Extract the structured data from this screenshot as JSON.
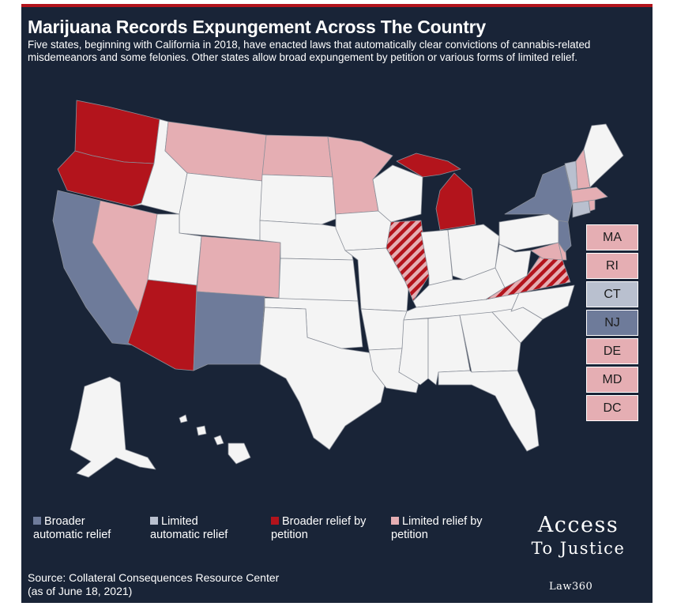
{
  "title": "Marijuana Records Expungement Across The Country",
  "subtitle": "Five states, beginning with California in 2018, have enacted laws that automatically clear convictions of cannabis-related misdemeanors and some felonies. Other states allow broad expungement by petition or various forms of limited relief.",
  "colors": {
    "background": "#192437",
    "accent_bar": "#b3141c",
    "broader_automatic": "#6e7b9a",
    "limited_automatic": "#b9c0cf",
    "broader_petition": "#b3141c",
    "limited_petition": "#e5aeb3",
    "none": "#f4f4f4"
  },
  "small_states": [
    {
      "label": "MA",
      "category": "limited_petition"
    },
    {
      "label": "RI",
      "category": "limited_petition"
    },
    {
      "label": "CT",
      "category": "limited_automatic"
    },
    {
      "label": "NJ",
      "category": "broader_automatic"
    },
    {
      "label": "DE",
      "category": "limited_petition"
    },
    {
      "label": "MD",
      "category": "limited_petition"
    },
    {
      "label": "DC",
      "category": "limited_petition"
    }
  ],
  "legend": [
    {
      "category": "broader_automatic",
      "line1": "Broader",
      "line2": "automatic relief"
    },
    {
      "category": "limited_automatic",
      "line1": "Limited",
      "line2": "automatic relief"
    },
    {
      "category": "broader_petition",
      "line1": "Broader relief by",
      "line2": "petition"
    },
    {
      "category": "limited_petition",
      "line1": "Limited relief by",
      "line2": "petition"
    }
  ],
  "source_line1": "Source: Collateral Consequences Resource Center",
  "source_line2": "(as of June 18, 2021)",
  "logo": {
    "line1": "Access",
    "line2": "To Justice",
    "brand": "Law360"
  }
}
